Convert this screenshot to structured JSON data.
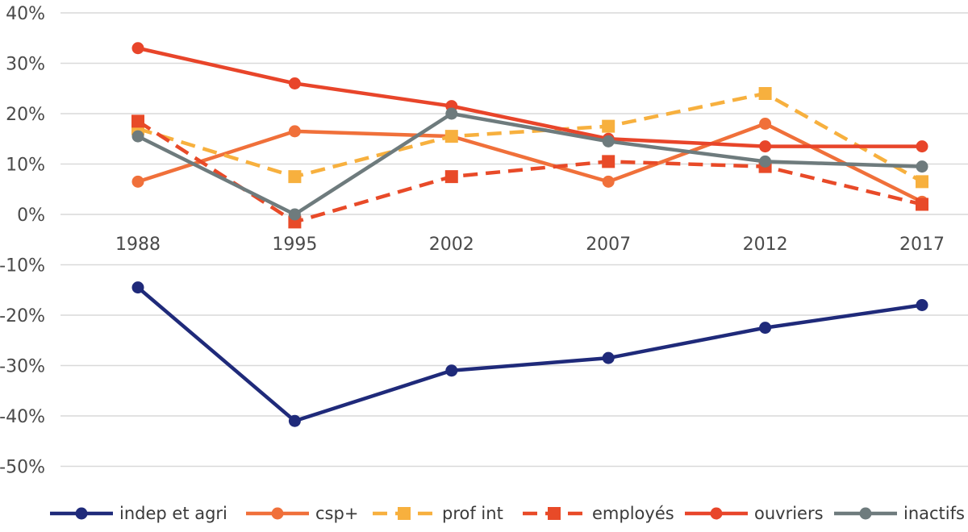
{
  "chart_data": {
    "type": "line",
    "title": "",
    "xlabel": "",
    "ylabel": "",
    "categories": [
      "1988",
      "1995",
      "2002",
      "2007",
      "2012",
      "2017"
    ],
    "y_ticks": [
      40,
      30,
      20,
      10,
      0,
      -10,
      -20,
      -30,
      -40,
      -50
    ],
    "y_tick_labels": [
      "40%",
      "30%",
      "20%",
      "10%",
      "0%",
      "-10%",
      "-20%",
      "-30%",
      "-40%",
      "-50%"
    ],
    "ylim": [
      -55,
      41
    ],
    "grid": "horizontal",
    "legend_position": "bottom",
    "series": [
      {
        "name": "indep et agri",
        "color": "#1f2a7a",
        "dash": "solid",
        "marker": "circle",
        "values": [
          -14.5,
          -41,
          -31,
          -28.5,
          -22.5,
          -18
        ]
      },
      {
        "name": "csp+",
        "color": "#f0703a",
        "dash": "solid",
        "marker": "circle",
        "values": [
          6.5,
          16.5,
          15.5,
          6.5,
          18,
          2.5
        ]
      },
      {
        "name": "prof int",
        "color": "#f7b03e",
        "dash": "dashed",
        "marker": "square",
        "values": [
          17,
          7.5,
          15.5,
          17.5,
          24,
          6.5
        ]
      },
      {
        "name": "employés",
        "color": "#e84a28",
        "dash": "dashed",
        "marker": "square",
        "values": [
          18.5,
          -1.5,
          7.5,
          10.5,
          9.5,
          2
        ]
      },
      {
        "name": "ouvriers",
        "color": "#e8452a",
        "dash": "solid",
        "marker": "circle",
        "values": [
          33,
          26,
          21.5,
          15,
          13.5,
          13.5
        ]
      },
      {
        "name": "inactifs",
        "color": "#6e7b7d",
        "dash": "solid",
        "marker": "circle",
        "values": [
          15.5,
          0,
          20,
          14.5,
          10.5,
          9.5
        ]
      }
    ]
  }
}
